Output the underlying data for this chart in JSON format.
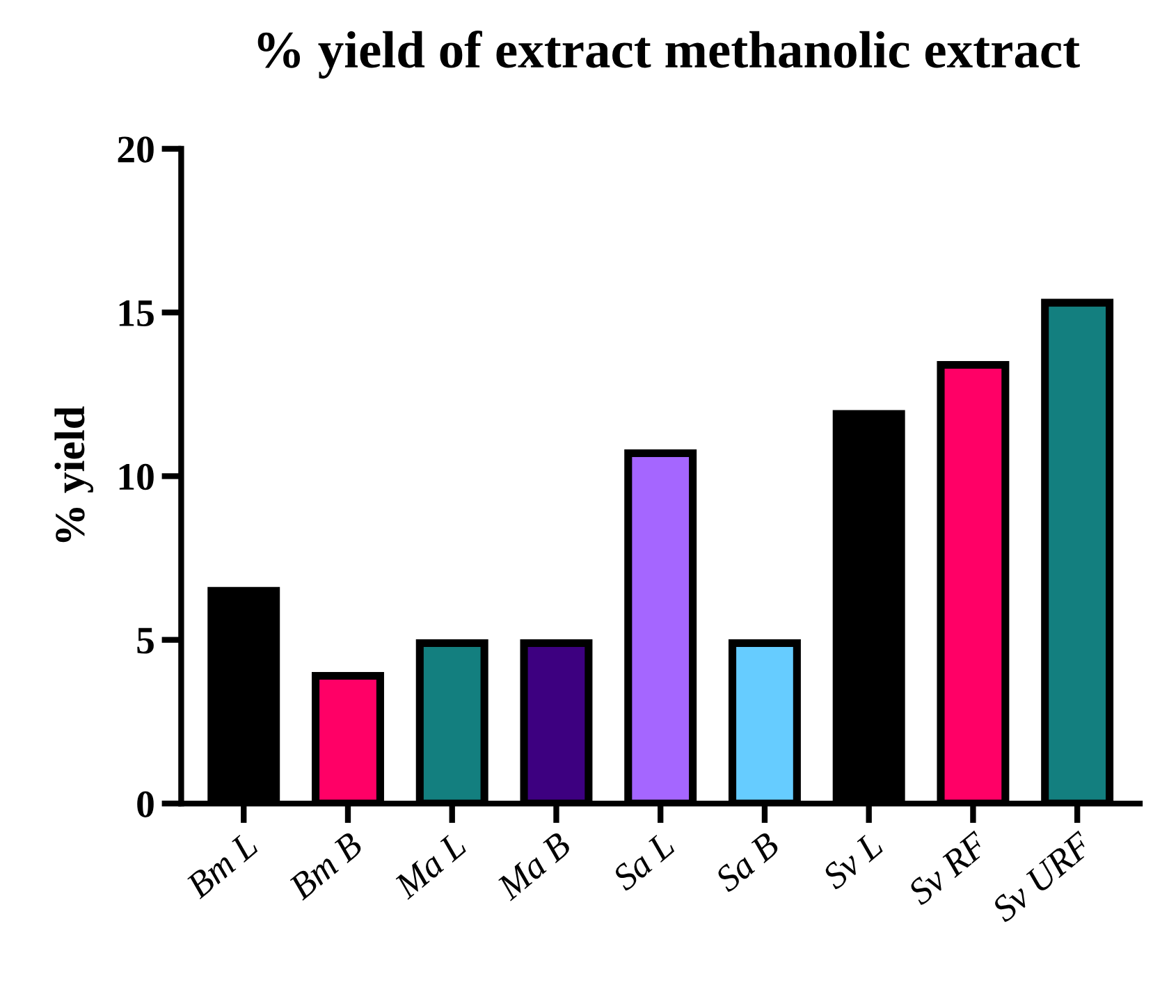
{
  "chart_data": {
    "type": "bar",
    "title": "% yield of extract methanolic extract",
    "ylabel": "% yield",
    "categories": [
      "Bm L",
      "Bm B",
      "Ma L",
      "Ma B",
      "Sa L",
      "Sa B",
      "Sv L",
      "Sv RF",
      "Sv URF"
    ],
    "values": [
      6.5,
      3.9,
      4.9,
      4.9,
      10.7,
      4.9,
      11.9,
      13.4,
      15.3
    ],
    "colors": [
      "#000000",
      "#ff0066",
      "#137f7f",
      "#3d0080",
      "#a566ff",
      "#66ccff",
      "#000000",
      "#ff0066",
      "#137f7f"
    ],
    "ylim": [
      0,
      20
    ],
    "yticks": [
      0,
      5,
      10,
      15,
      20
    ],
    "grid": false,
    "legend": false
  }
}
